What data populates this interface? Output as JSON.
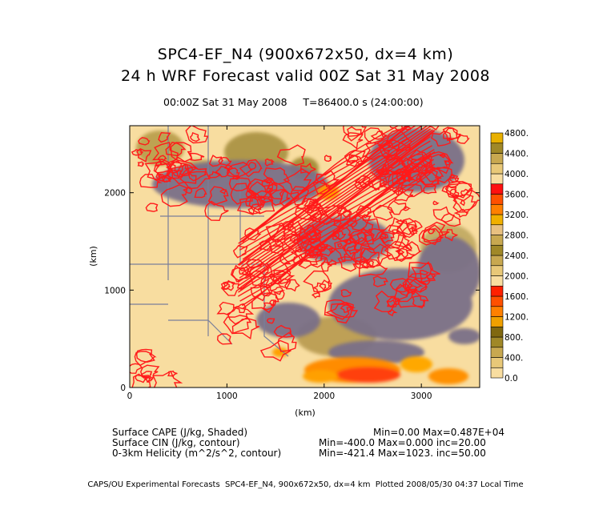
{
  "header": {
    "title_line1": "SPC4-EF_N4 (900x672x50, dx=4 km)",
    "title_line2": "24 h WRF Forecast valid 00Z Sat 31 May 2008",
    "time_left": "00:00Z Sat 31 May 2008",
    "time_right": "T=86400.0 s (24:00:00)"
  },
  "legend_text": {
    "l1_left": "Surface CAPE (J/kg, Shaded)",
    "l1_right": "Min=0.00 Max=0.487E+04",
    "l2_left": "Surface CIN (J/kg, contour)",
    "l2_right": "Min=-400.0 Max=0.000 inc=20.00",
    "l3_left": "0-3km Helicity (m^2/s^2, contour)",
    "l3_right": "Min=-421.4 Max=1023. inc=50.00"
  },
  "footer": "CAPS/OU Experimental Forecasts  SPC4-EF_N4, 900x672x50, dx=4 km  Plotted 2008/05/30 04:37 Local Time",
  "chart_data": {
    "type": "heatmap",
    "xlabel": "(km)",
    "ylabel": "(km)",
    "xlim": [
      0,
      3600
    ],
    "ylim": [
      0,
      2688
    ],
    "x_ticks": [
      0,
      1000,
      2000,
      3000
    ],
    "y_ticks": [
      0,
      1000,
      2000
    ],
    "colorbar": {
      "levels": [
        0,
        200,
        400,
        600,
        800,
        1000,
        1200,
        1400,
        1600,
        1800,
        2000,
        2200,
        2400,
        2600,
        2800,
        3000,
        3200,
        3400,
        3600,
        3800,
        4000,
        4200,
        4400,
        4600,
        4800
      ],
      "tick_labels": [
        "0.0",
        "400.",
        "800.",
        "1200.",
        "1600.",
        "2000.",
        "2400.",
        "2800.",
        "3200.",
        "3600.",
        "4000.",
        "4400.",
        "4800."
      ],
      "colors": [
        "#f8dda0",
        "#e8c878",
        "#c8a850",
        "#a08828",
        "#806810",
        "#f0a000",
        "#ff8000",
        "#ff5000",
        "#ff2000",
        "#f8dda0",
        "#e8c878",
        "#c8a850",
        "#a08828",
        "#c8a850",
        "#e8c080",
        "#f0b000",
        "#ff8000",
        "#ff5000",
        "#ff1010",
        "#f8dda0",
        "#e8c878",
        "#c8a850",
        "#a08828",
        "#e8b000"
      ]
    },
    "field_colors": {
      "background": "#f8dda0",
      "cin": "#7a7088",
      "helicity": "#ff1a1a",
      "boundaries": "#7a7f9a",
      "high_cape": [
        "#ff8000",
        "#ffa000",
        "#ff3000"
      ]
    }
  }
}
